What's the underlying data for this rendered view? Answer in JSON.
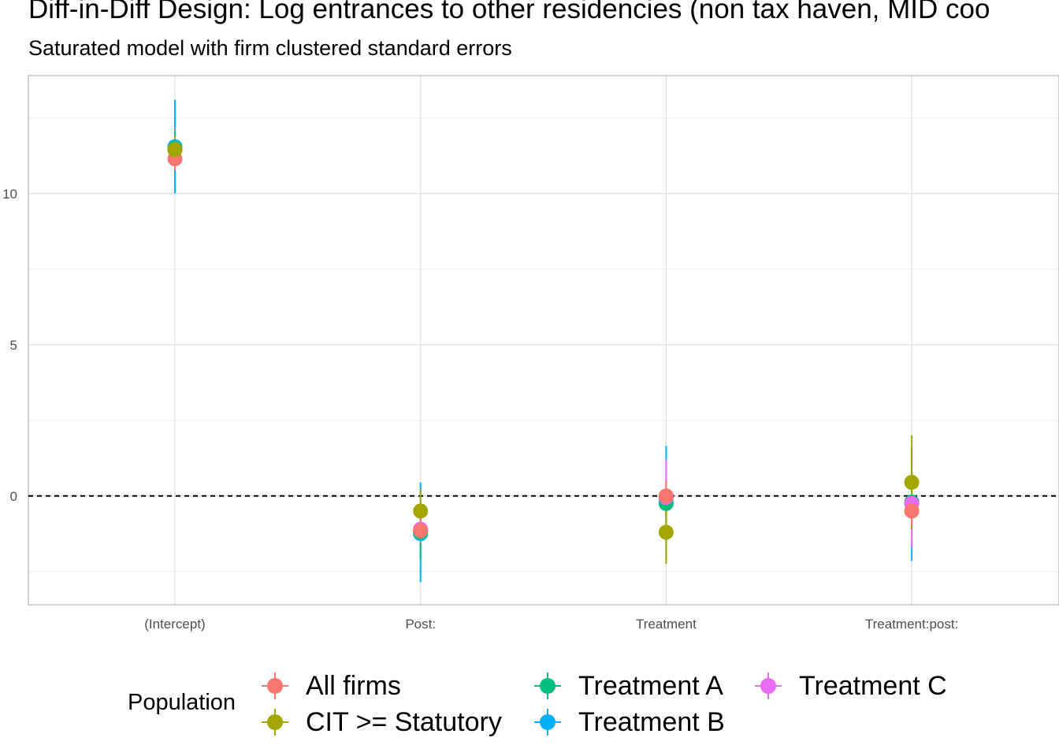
{
  "chart_data": {
    "type": "scatter",
    "title": "Diff-in-Diff Design: Log entrances to other residencies (non tax haven, MID coo",
    "subtitle": "Saturated model with firm clustered standard errors",
    "xlabel": "",
    "ylabel": "",
    "categories": [
      "(Intercept)",
      "Post:",
      "Treatment",
      "Treatment:post:"
    ],
    "y_ticks": [
      0,
      5,
      10
    ],
    "ylim": [
      -3.6,
      13.9
    ],
    "grid": true,
    "reference_line": 0,
    "legend": {
      "title": "Population",
      "placement": "bottom"
    },
    "series": [
      {
        "name": "All firms",
        "color": "#F8766D",
        "values": [
          11.15,
          -1.15,
          0.0,
          -0.5
        ],
        "lower": [
          10.75,
          -1.55,
          -0.5,
          -1.0
        ],
        "upper": [
          11.55,
          -0.75,
          0.5,
          0.0
        ]
      },
      {
        "name": "CIT >= Statutory",
        "color": "#A3A500",
        "values": [
          11.45,
          -0.5,
          -1.2,
          0.45
        ],
        "lower": [
          11.0,
          -1.2,
          -2.25,
          -1.1
        ],
        "upper": [
          11.9,
          0.2,
          -0.15,
          2.0
        ]
      },
      {
        "name": "Treatment A",
        "color": "#00BF7D",
        "values": [
          11.5,
          -1.2,
          -0.25,
          -0.2
        ],
        "lower": [
          10.9,
          -2.1,
          -0.95,
          -1.1
        ],
        "upper": [
          12.1,
          -0.3,
          0.45,
          0.7
        ]
      },
      {
        "name": "Treatment B",
        "color": "#00B0F6",
        "values": [
          11.55,
          -1.25,
          -0.2,
          -0.25
        ],
        "lower": [
          10.0,
          -2.85,
          -2.05,
          -2.15
        ],
        "upper": [
          13.1,
          0.45,
          1.65,
          1.65
        ]
      },
      {
        "name": "Treatment C",
        "color": "#E76BF3",
        "values": [
          11.45,
          -1.1,
          -0.05,
          -0.25
        ],
        "lower": [
          10.75,
          -2.05,
          -1.3,
          -1.7
        ],
        "upper": [
          12.15,
          -0.15,
          1.2,
          1.2
        ]
      }
    ]
  }
}
